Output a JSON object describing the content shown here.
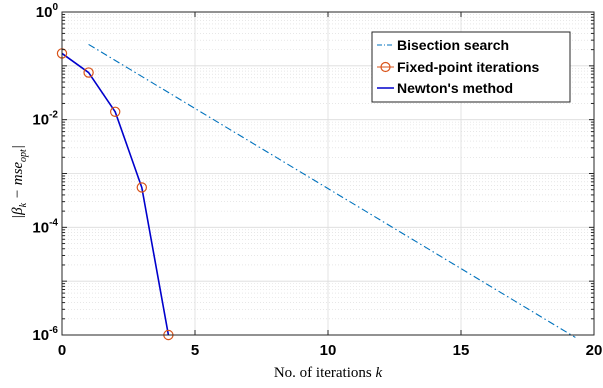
{
  "chart_data": {
    "type": "line",
    "xlabel": "No. of iterations k",
    "xlabel_parts": [
      "No. of iterations ",
      "k"
    ],
    "ylabel": "|β_k − mse_opt|",
    "yscale": "log",
    "xlim": [
      0,
      20
    ],
    "ylim": [
      1e-06,
      1
    ],
    "x_ticks": [
      0,
      5,
      10,
      15,
      20
    ],
    "y_ticks": [
      {
        "value": 1,
        "base": "10",
        "exp": "0"
      },
      {
        "value": 0.01,
        "base": "10",
        "exp": "-2"
      },
      {
        "value": 0.0001,
        "base": "10",
        "exp": "-4"
      },
      {
        "value": 1e-06,
        "base": "10",
        "exp": "-6"
      }
    ],
    "grid": true,
    "legend_position": "top-right",
    "series": [
      {
        "name": "Bisection search",
        "color": "#0072BD",
        "style": "dash-dot",
        "marker": "none",
        "x": [
          1,
          19.3
        ],
        "y": [
          0.25,
          9e-07
        ]
      },
      {
        "name": "Fixed-point iterations",
        "color": "#D95319",
        "style": "none",
        "marker": "circle",
        "x": [
          0,
          1,
          2,
          3,
          4
        ],
        "y": [
          0.17,
          0.075,
          0.014,
          0.00055,
          1e-06
        ]
      },
      {
        "name": "Newton's method",
        "color": "#0000CC",
        "style": "solid",
        "marker": "none",
        "x": [
          0,
          1,
          2,
          3,
          4
        ],
        "y": [
          0.17,
          0.075,
          0.014,
          0.00055,
          1e-06
        ]
      }
    ]
  }
}
